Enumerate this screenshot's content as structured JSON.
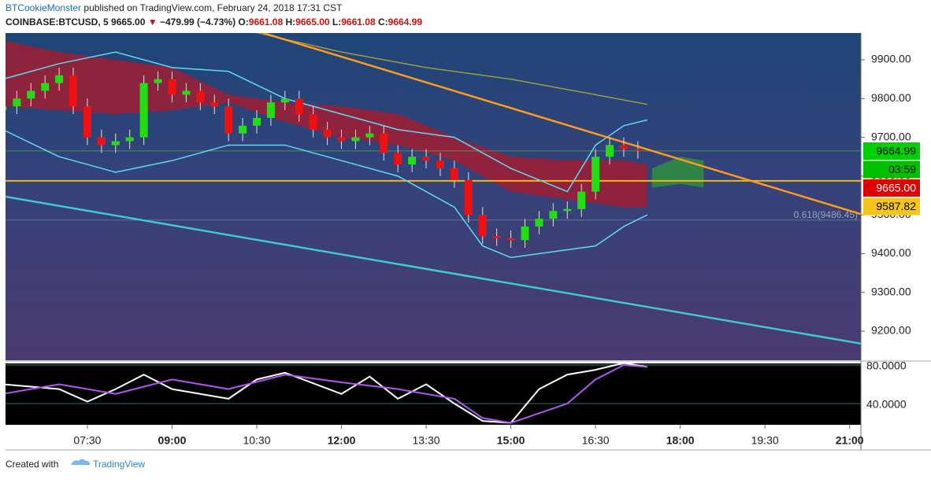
{
  "header": {
    "author": "BTCookieMonster",
    "published": "published on TradingView.com, February 24, 2018 17:31 CST"
  },
  "symbol": {
    "name": "COINBASE:BTCUSD, 5",
    "last": "9665.00",
    "arrow": "▼",
    "change": "−479.99 (−4.73%)",
    "open_label": "O:",
    "open": "9661.08",
    "high_label": "H:",
    "high": "9665.00",
    "low_label": "L:",
    "low": "9661.08",
    "close_label": "C:",
    "close": "9664.99"
  },
  "chart_data": [
    {
      "type": "candlestick",
      "x": [
        "06:00",
        "06:15",
        "06:30",
        "06:45",
        "07:00",
        "07:15",
        "07:30",
        "07:45",
        "08:00",
        "08:15",
        "08:30",
        "08:45",
        "09:00",
        "09:15",
        "09:30",
        "09:45",
        "10:00",
        "10:15",
        "10:30",
        "10:45",
        "11:00",
        "11:15",
        "11:30",
        "11:45",
        "12:00",
        "12:15",
        "12:30",
        "12:45",
        "13:00",
        "13:15",
        "13:30",
        "13:45",
        "14:00",
        "14:15",
        "14:30",
        "14:45",
        "15:00",
        "15:15",
        "15:30",
        "15:45",
        "16:00",
        "16:15",
        "16:30",
        "16:45",
        "17:00",
        "17:15"
      ],
      "open": [
        9770,
        9780,
        9800,
        9820,
        9840,
        9860,
        9780,
        9700,
        9680,
        9690,
        9700,
        9840,
        9850,
        9810,
        9820,
        9790,
        9780,
        9710,
        9730,
        9750,
        9790,
        9800,
        9760,
        9720,
        9700,
        9690,
        9700,
        9710,
        9660,
        9630,
        9650,
        9640,
        9620,
        9590,
        9500,
        9445,
        9440,
        9435,
        9470,
        9490,
        9510,
        9515,
        9560,
        9650,
        9680,
        9670
      ],
      "high": [
        9800,
        9820,
        9840,
        9860,
        9880,
        9880,
        9800,
        9720,
        9710,
        9720,
        9860,
        9870,
        9870,
        9840,
        9840,
        9810,
        9800,
        9750,
        9770,
        9810,
        9820,
        9820,
        9780,
        9740,
        9720,
        9720,
        9730,
        9730,
        9680,
        9670,
        9670,
        9660,
        9640,
        9610,
        9520,
        9465,
        9460,
        9490,
        9510,
        9530,
        9535,
        9580,
        9670,
        9700,
        9700,
        9690
      ],
      "low": [
        9750,
        9760,
        9780,
        9800,
        9820,
        9760,
        9680,
        9660,
        9660,
        9670,
        9680,
        9820,
        9790,
        9790,
        9770,
        9760,
        9690,
        9690,
        9710,
        9730,
        9770,
        9740,
        9700,
        9680,
        9670,
        9670,
        9680,
        9640,
        9610,
        9610,
        9620,
        9600,
        9570,
        9480,
        9425,
        9420,
        9415,
        9415,
        9450,
        9470,
        9490,
        9495,
        9540,
        9630,
        9650,
        9645
      ],
      "close": [
        9780,
        9800,
        9820,
        9840,
        9860,
        9780,
        9700,
        9680,
        9690,
        9700,
        9840,
        9850,
        9810,
        9820,
        9790,
        9780,
        9710,
        9730,
        9750,
        9790,
        9800,
        9760,
        9720,
        9700,
        9690,
        9700,
        9710,
        9660,
        9630,
        9650,
        9640,
        9620,
        9590,
        9500,
        9445,
        9440,
        9435,
        9470,
        9490,
        9510,
        9515,
        9560,
        9650,
        9680,
        9670,
        9665
      ],
      "up_color": "#22dd11",
      "down_color": "#ee1111",
      "xlim": [
        "06:03",
        "21:12"
      ],
      "xticks": [
        "07:30",
        "09:00",
        "10:30",
        "12:00",
        "13:30",
        "15:00",
        "16:30",
        "18:00",
        "19:30",
        "21:00"
      ],
      "ylim": [
        9125,
        9969
      ],
      "yticks": [
        {
          "value": 9200,
          "label": "9200.00"
        },
        {
          "value": 9300,
          "label": "9300.00"
        },
        {
          "value": 9400,
          "label": "9400.00"
        },
        {
          "value": 9500,
          "label": "9500.00"
        },
        {
          "value": 9600,
          "label": "9600.00"
        },
        {
          "value": 9700,
          "label": "9700.00"
        },
        {
          "value": 9800,
          "label": "9800.00"
        },
        {
          "value": 9900,
          "label": "9900.00"
        }
      ],
      "clouds": [
        {
          "color": "#b0182a",
          "x": [
            "06:00",
            "07:00",
            "08:00",
            "09:00",
            "10:00",
            "11:00",
            "12:00",
            "13:00",
            "14:00",
            "15:00",
            "16:00",
            "17:00",
            "17:25"
          ],
          "upper": [
            9950,
            9920,
            9900,
            9880,
            9810,
            9790,
            9780,
            9760,
            9700,
            9650,
            9640,
            9640,
            9630
          ],
          "lower": [
            9780,
            9770,
            9760,
            9770,
            9790,
            9740,
            9700,
            9680,
            9640,
            9560,
            9540,
            9520,
            9520
          ]
        },
        {
          "color": "#2e9a3a",
          "x": [
            "17:30",
            "18:00",
            "18:25"
          ],
          "upper": [
            9620,
            9650,
            9640
          ],
          "lower": [
            9570,
            9580,
            9570
          ]
        }
      ],
      "lines": [
        {
          "color": "#5fd8f0",
          "x": [
            "06:00",
            "07:00",
            "08:00",
            "09:00",
            "10:00",
            "11:00",
            "12:00",
            "13:00",
            "14:00",
            "15:00",
            "16:00",
            "16:30",
            "17:00",
            "17:25"
          ],
          "values": [
            9850,
            9890,
            9920,
            9880,
            9870,
            9800,
            9760,
            9720,
            9700,
            9620,
            9560,
            9680,
            9730,
            9745
          ]
        },
        {
          "color": "#5fd8f0",
          "x": [
            "06:00",
            "07:00",
            "08:00",
            "09:00",
            "10:00",
            "11:00",
            "12:00",
            "13:00",
            "14:00",
            "14:30",
            "15:00",
            "16:00",
            "16:30",
            "17:00",
            "17:25"
          ],
          "values": [
            9720,
            9650,
            9610,
            9640,
            9680,
            9680,
            9640,
            9600,
            9520,
            9420,
            9390,
            9410,
            9420,
            9470,
            9500
          ]
        },
        {
          "color": "#9a9a48",
          "x": [
            "10:30",
            "12:00",
            "13:30",
            "15:00",
            "16:30",
            "17:25"
          ],
          "values": [
            9970,
            9920,
            9880,
            9850,
            9810,
            9785
          ]
        },
        {
          "color": "#ff9a1a",
          "x": [
            "10:37",
            "21:12"
          ],
          "values": [
            9969,
            9502
          ]
        },
        {
          "color": "#3fc8d0",
          "x": [
            "06:03",
            "21:12"
          ],
          "values": [
            9547,
            9168
          ]
        }
      ],
      "hlines": [
        {
          "value": 9587.82,
          "color": "#f5b800"
        },
        {
          "value": 9664.99,
          "color": "#3c9a3c"
        }
      ],
      "fib": {
        "value": 9486.45,
        "label": "0.618(9486.45)"
      },
      "price_labels": [
        {
          "label": "9664.99",
          "color": "#00d000"
        },
        {
          "label": "03:59",
          "color": "#00c000"
        },
        {
          "label": "9665.00",
          "color": "#e00000"
        },
        {
          "label": "9587.82",
          "color": "#f5c518"
        }
      ]
    },
    {
      "type": "line",
      "ylim": [
        18,
        81.6
      ],
      "yticks": [
        {
          "value": 40,
          "label": "40.0000"
        },
        {
          "value": 80,
          "label": "80.0000"
        }
      ],
      "series": [
        {
          "color": "#ffffff",
          "x": [
            "06:00",
            "07:00",
            "07:30",
            "08:00",
            "08:30",
            "09:00",
            "10:00",
            "10:30",
            "11:00",
            "12:00",
            "12:30",
            "13:00",
            "13:30",
            "14:00",
            "14:30",
            "15:00",
            "15:30",
            "16:00",
            "16:30",
            "17:00",
            "17:25"
          ],
          "values": [
            60,
            55,
            42,
            55,
            70,
            55,
            45,
            65,
            72,
            50,
            68,
            45,
            60,
            40,
            22,
            20,
            55,
            70,
            75,
            82,
            78
          ]
        },
        {
          "color": "#b455f0",
          "x": [
            "06:00",
            "07:00",
            "08:00",
            "09:00",
            "10:00",
            "11:00",
            "12:00",
            "13:00",
            "14:00",
            "14:30",
            "15:00",
            "16:00",
            "16:30",
            "17:00",
            "17:25"
          ],
          "values": [
            50,
            60,
            50,
            65,
            55,
            70,
            62,
            55,
            45,
            25,
            20,
            40,
            65,
            80,
            78
          ]
        }
      ]
    }
  ],
  "footer": {
    "created": "Created with",
    "brand": "TradingView"
  }
}
